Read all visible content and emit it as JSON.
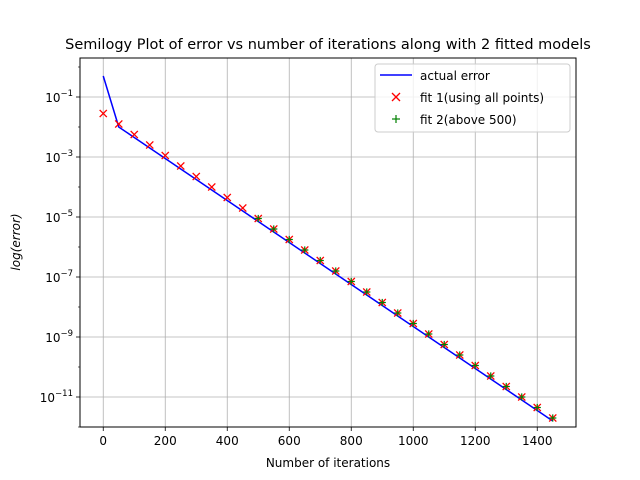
{
  "chart_data": {
    "type": "line",
    "title": "Semilogy Plot of error vs number of iterations along with 2 fitted models",
    "xlabel": "Number of iterations",
    "ylabel": "log(error)",
    "yscale": "log",
    "xlim": [
      -75,
      1525
    ],
    "ylim_log10": [
      -12.0,
      0.3
    ],
    "grid": true,
    "legend_position": "top-right",
    "x_ticks": [
      0,
      200,
      400,
      600,
      800,
      1000,
      1200,
      1400
    ],
    "y_ticks": [
      {
        "exp": -1,
        "label": "10",
        "sup": "−1"
      },
      {
        "exp": -3,
        "label": "10",
        "sup": "−3"
      },
      {
        "exp": -5,
        "label": "10",
        "sup": "−5"
      },
      {
        "exp": -7,
        "label": "10",
        "sup": "−7"
      },
      {
        "exp": -9,
        "label": "10",
        "sup": "−9"
      },
      {
        "exp": -11,
        "label": "10",
        "sup": "−11"
      }
    ],
    "series": [
      {
        "name": "actual error",
        "style": "line",
        "color": "#0000ff",
        "x": [
          0,
          50,
          100,
          150,
          200,
          250,
          300,
          350,
          400,
          450,
          500,
          550,
          600,
          650,
          700,
          750,
          800,
          850,
          900,
          950,
          1000,
          1050,
          1100,
          1150,
          1200,
          1250,
          1300,
          1350,
          1400,
          1450
        ],
        "log10_y": [
          -0.3,
          -2.0,
          -2.35,
          -2.7,
          -3.05,
          -3.4,
          -3.75,
          -4.1,
          -4.45,
          -4.8,
          -5.15,
          -5.5,
          -5.85,
          -6.2,
          -6.55,
          -6.9,
          -7.25,
          -7.6,
          -7.95,
          -8.3,
          -8.65,
          -9.0,
          -9.35,
          -9.7,
          -10.05,
          -10.4,
          -10.75,
          -11.1,
          -11.45,
          -11.8
        ]
      },
      {
        "name": "fit 1(using all points)",
        "style": "x",
        "color": "#ff0000",
        "x": [
          0,
          50,
          100,
          150,
          200,
          250,
          300,
          350,
          400,
          450,
          500,
          550,
          600,
          650,
          700,
          750,
          800,
          850,
          900,
          950,
          1000,
          1050,
          1100,
          1150,
          1200,
          1250,
          1300,
          1350,
          1400,
          1450
        ],
        "log10_y": [
          -1.55,
          -1.9,
          -2.25,
          -2.6,
          -2.95,
          -3.3,
          -3.65,
          -4.0,
          -4.35,
          -4.7,
          -5.05,
          -5.4,
          -5.75,
          -6.1,
          -6.45,
          -6.8,
          -7.15,
          -7.5,
          -7.85,
          -8.2,
          -8.55,
          -8.9,
          -9.25,
          -9.6,
          -9.95,
          -10.3,
          -10.65,
          -11.0,
          -11.35,
          -11.7
        ]
      },
      {
        "name": "fit 2(above 500)",
        "style": "+",
        "color": "#008000",
        "x": [
          500,
          550,
          600,
          650,
          700,
          750,
          800,
          850,
          900,
          950,
          1000,
          1050,
          1100,
          1150,
          1200,
          1250,
          1300,
          1350,
          1400,
          1450
        ],
        "log10_y": [
          -5.05,
          -5.4,
          -5.75,
          -6.1,
          -6.45,
          -6.8,
          -7.15,
          -7.5,
          -7.85,
          -8.2,
          -8.55,
          -8.9,
          -9.25,
          -9.6,
          -9.95,
          -10.3,
          -10.65,
          -11.0,
          -11.35,
          -11.7
        ]
      }
    ]
  }
}
